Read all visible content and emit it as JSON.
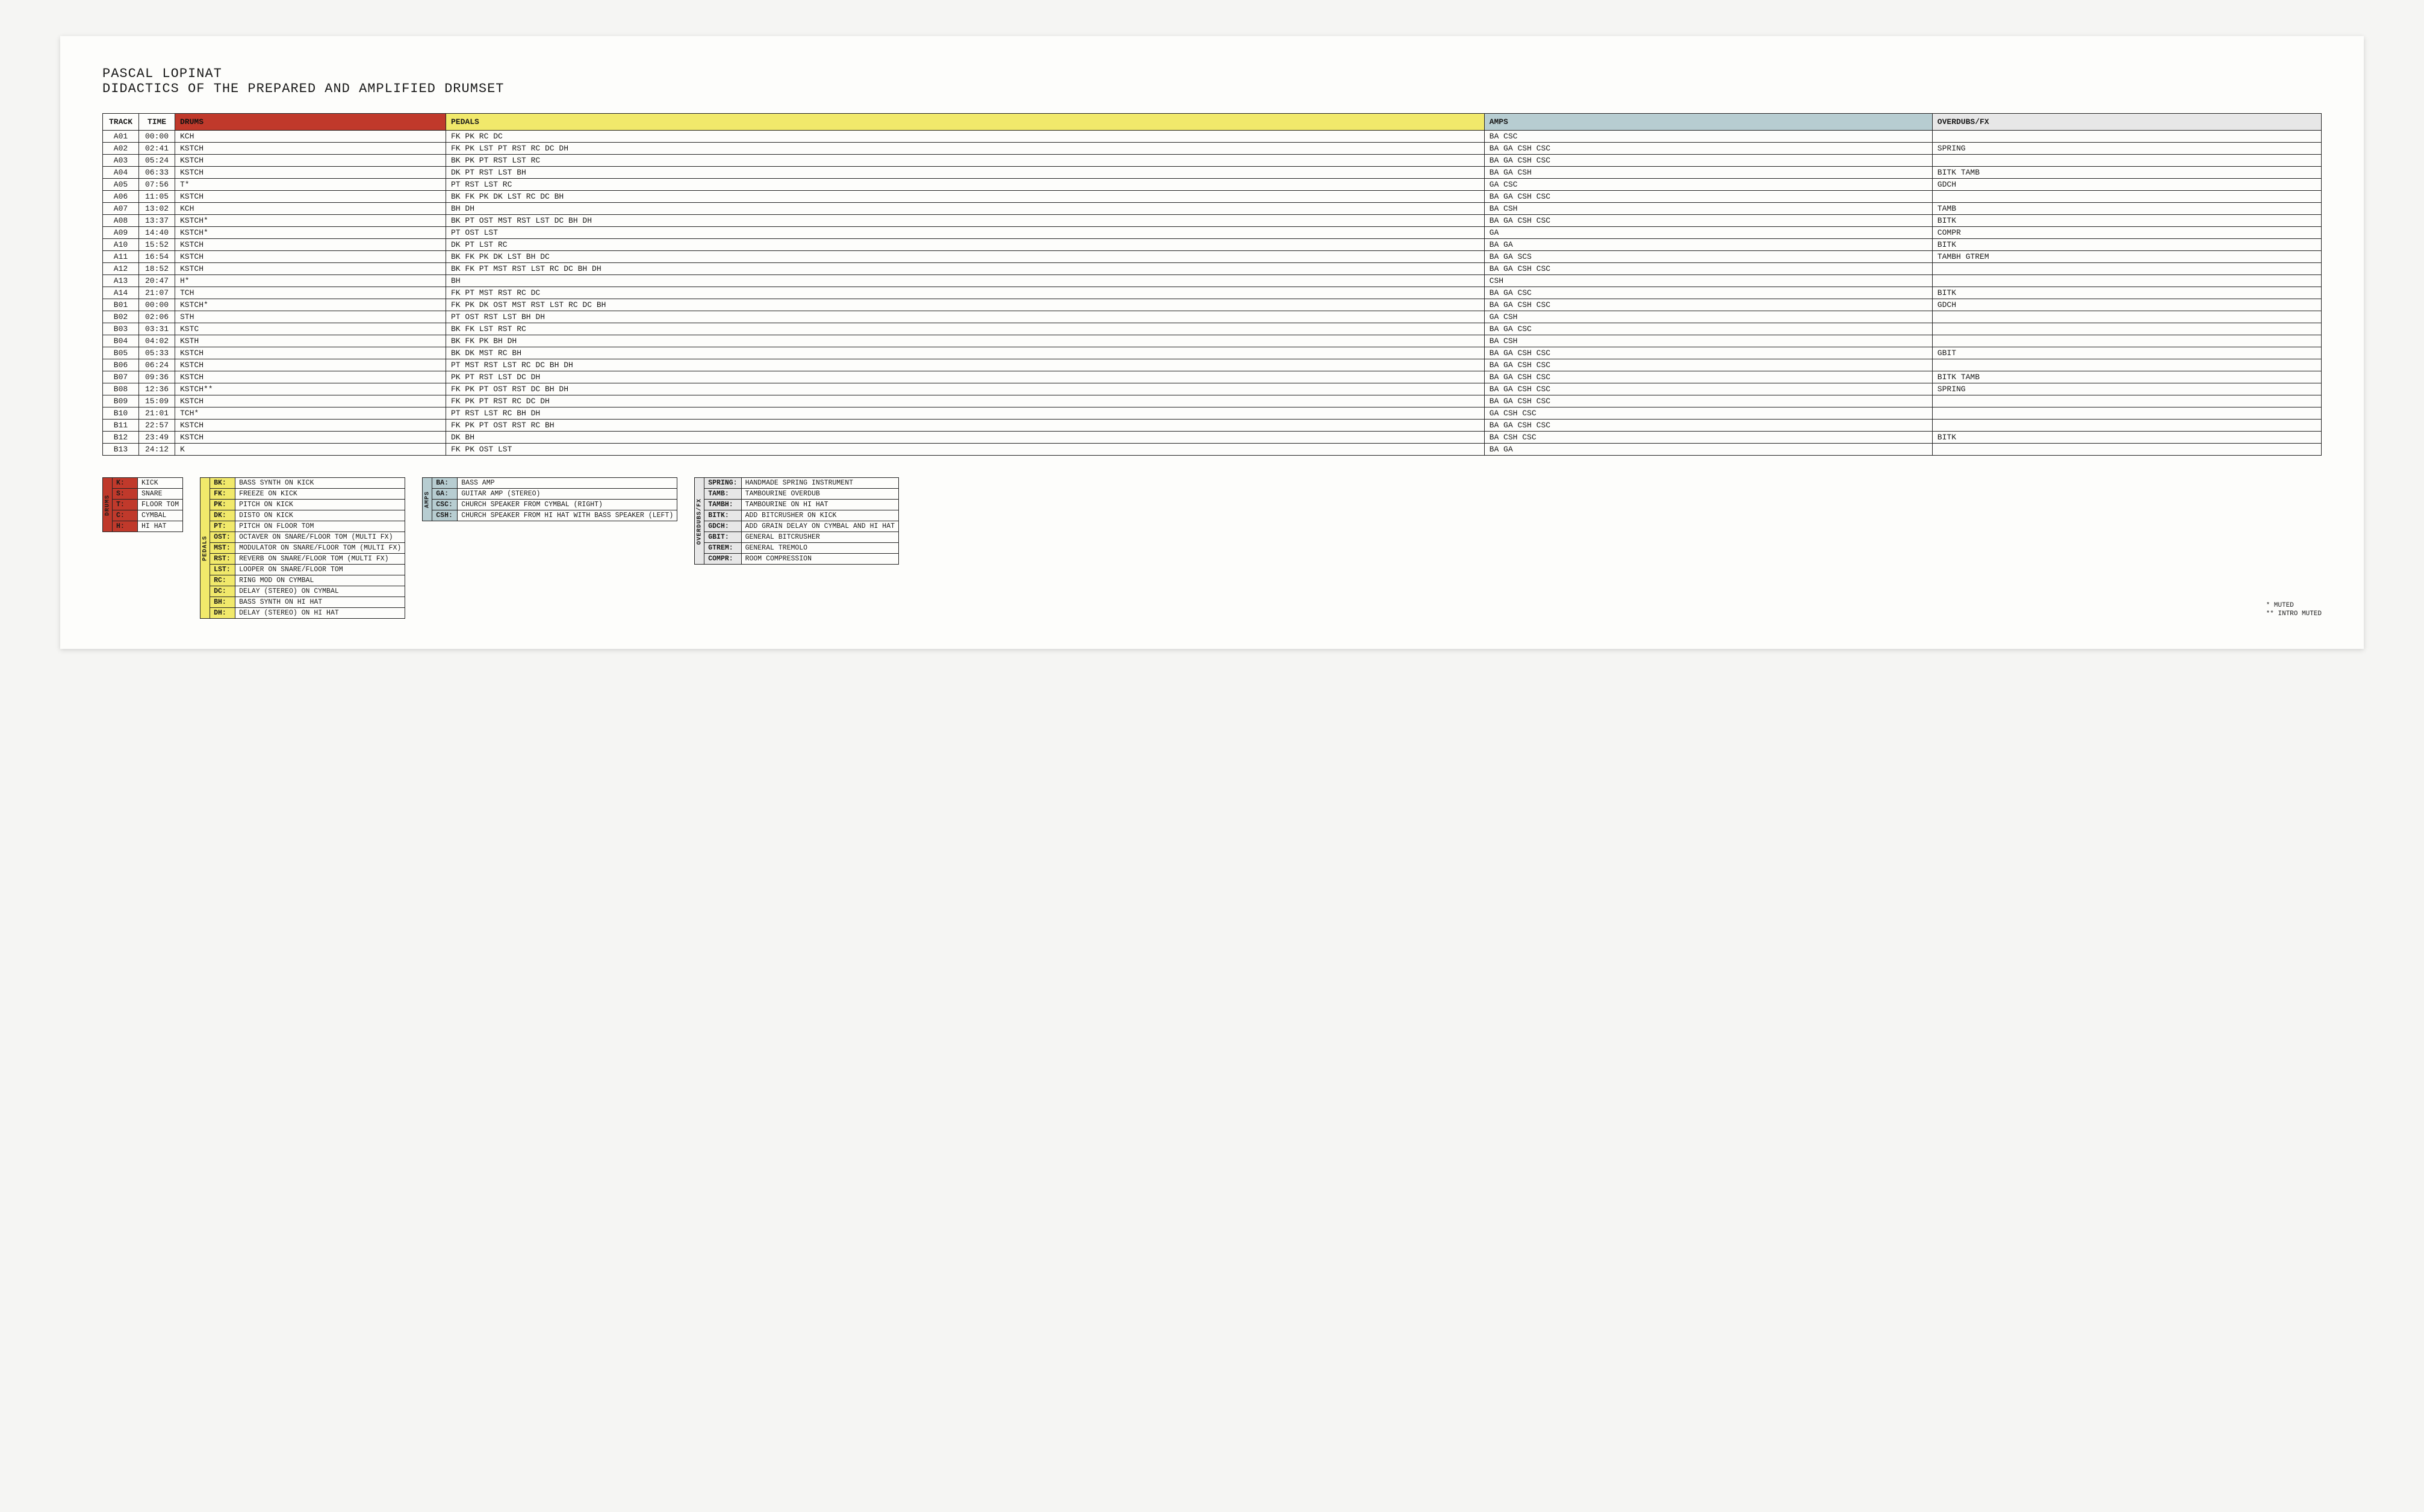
{
  "header": {
    "artist": "PASCAL LOPINAT",
    "title": "DIDACTICS OF THE PREPARED AND AMPLIFIED DRUMSET"
  },
  "colors": {
    "drums": "#c0392b",
    "pedals": "#f1e96b",
    "amps": "#b7cdd1",
    "overdubs": "#e7e7e7",
    "row_bg": "#ffffff"
  },
  "columns": {
    "track": "TRACK",
    "time": "TIME",
    "drums": "DRUMS",
    "pedals": "PEDALS",
    "amps": "AMPS",
    "overdubs": "OVERDUBS/FX"
  },
  "tracks": [
    {
      "id": "A01",
      "time": "00:00",
      "drums": "KCH",
      "pedals": "FK PK RC DC",
      "amps": "BA CSC",
      "od": ""
    },
    {
      "id": "A02",
      "time": "02:41",
      "drums": "KSTCH",
      "pedals": "FK PK LST PT RST RC DC DH",
      "amps": "BA GA CSH CSC",
      "od": "SPRING"
    },
    {
      "id": "A03",
      "time": "05:24",
      "drums": "KSTCH",
      "pedals": "BK PK PT RST LST RC",
      "amps": "BA GA CSH CSC",
      "od": ""
    },
    {
      "id": "A04",
      "time": "06:33",
      "drums": "KSTCH",
      "pedals": "DK PT RST LST BH",
      "amps": "BA GA CSH",
      "od": "BITK TAMB"
    },
    {
      "id": "A05",
      "time": "07:56",
      "drums": "T*",
      "pedals": "PT RST LST RC",
      "amps": "GA CSC",
      "od": "GDCH"
    },
    {
      "id": "A06",
      "time": "11:05",
      "drums": "KSTCH",
      "pedals": "BK FK PK DK LST RC DC BH",
      "amps": "BA GA CSH CSC",
      "od": ""
    },
    {
      "id": "A07",
      "time": "13:02",
      "drums": "KCH",
      "pedals": "BH DH",
      "amps": "BA CSH",
      "od": "TAMB"
    },
    {
      "id": "A08",
      "time": "13:37",
      "drums": "KSTCH*",
      "pedals": "BK PT OST MST RST LST DC BH DH",
      "amps": "BA GA CSH CSC",
      "od": "BITK"
    },
    {
      "id": "A09",
      "time": "14:40",
      "drums": "KSTCH*",
      "pedals": "PT OST LST",
      "amps": "GA",
      "od": "COMPR"
    },
    {
      "id": "A10",
      "time": "15:52",
      "drums": "KSTCH",
      "pedals": "DK PT LST RC",
      "amps": "BA GA",
      "od": "BITK"
    },
    {
      "id": "A11",
      "time": "16:54",
      "drums": "KSTCH",
      "pedals": "BK FK PK DK LST BH DC",
      "amps": "BA GA SCS",
      "od": "TAMBH GTREM"
    },
    {
      "id": "A12",
      "time": "18:52",
      "drums": "KSTCH",
      "pedals": "BK FK PT MST RST LST RC DC BH DH",
      "amps": "BA GA CSH CSC",
      "od": ""
    },
    {
      "id": "A13",
      "time": "20:47",
      "drums": "H*",
      "pedals": "BH",
      "amps": "CSH",
      "od": ""
    },
    {
      "id": "A14",
      "time": "21:07",
      "drums": "TCH",
      "pedals": "FK PT MST RST RC DC",
      "amps": "BA GA CSC",
      "od": "BITK"
    },
    {
      "id": "B01",
      "time": "00:00",
      "drums": "KSTCH*",
      "pedals": "FK PK DK OST MST RST LST RC DC BH",
      "amps": "BA GA CSH CSC",
      "od": "GDCH"
    },
    {
      "id": "B02",
      "time": "02:06",
      "drums": "STH",
      "pedals": "PT OST RST LST BH DH",
      "amps": "GA CSH",
      "od": ""
    },
    {
      "id": "B03",
      "time": "03:31",
      "drums": "KSTC",
      "pedals": "BK FK LST RST RC",
      "amps": "BA GA CSC",
      "od": ""
    },
    {
      "id": "B04",
      "time": "04:02",
      "drums": "KSTH",
      "pedals": "BK FK PK BH DH",
      "amps": "BA CSH",
      "od": ""
    },
    {
      "id": "B05",
      "time": "05:33",
      "drums": "KSTCH",
      "pedals": "BK DK MST RC BH",
      "amps": "BA GA CSH CSC",
      "od": "GBIT"
    },
    {
      "id": "B06",
      "time": "06:24",
      "drums": "KSTCH",
      "pedals": "PT MST RST LST RC DC BH DH",
      "amps": "BA GA CSH CSC",
      "od": ""
    },
    {
      "id": "B07",
      "time": "09:36",
      "drums": "KSTCH",
      "pedals": "PK PT RST LST DC DH",
      "amps": "BA GA CSH CSC",
      "od": "BITK TAMB"
    },
    {
      "id": "B08",
      "time": "12:36",
      "drums": "KSTCH**",
      "pedals": "FK PK PT OST RST DC BH DH",
      "amps": "BA GA CSH CSC",
      "od": "SPRING"
    },
    {
      "id": "B09",
      "time": "15:09",
      "drums": "KSTCH",
      "pedals": "FK PK PT RST RC DC DH",
      "amps": "BA GA CSH CSC",
      "od": ""
    },
    {
      "id": "B10",
      "time": "21:01",
      "drums": "TCH*",
      "pedals": "PT RST LST RC BH DH",
      "amps": "GA CSH CSC",
      "od": ""
    },
    {
      "id": "B11",
      "time": "22:57",
      "drums": "KSTCH",
      "pedals": "FK PK PT OST RST RC BH",
      "amps": "BA GA CSH CSC",
      "od": ""
    },
    {
      "id": "B12",
      "time": "23:49",
      "drums": "KSTCH",
      "pedals": "DK BH",
      "amps": "BA CSH CSC",
      "od": "BITK"
    },
    {
      "id": "B13",
      "time": "24:12",
      "drums": "K",
      "pedals": "FK PK OST LST",
      "amps": "BA GA",
      "od": ""
    }
  ],
  "legend_labels": {
    "drums": "DRUMS",
    "pedals": "PEDALS",
    "amps": "AMPS",
    "overdubs": "OVERDUBS/FX"
  },
  "legend_drums": [
    {
      "code": "K:",
      "desc": "KICK"
    },
    {
      "code": "S:",
      "desc": "SNARE"
    },
    {
      "code": "T:",
      "desc": "FLOOR TOM"
    },
    {
      "code": "C:",
      "desc": "CYMBAL"
    },
    {
      "code": "H:",
      "desc": "HI HAT"
    }
  ],
  "legend_pedals": [
    {
      "code": "BK:",
      "desc": "BASS SYNTH ON KICK"
    },
    {
      "code": "FK:",
      "desc": "FREEZE ON KICK"
    },
    {
      "code": "PK:",
      "desc": "PITCH ON KICK"
    },
    {
      "code": "DK:",
      "desc": "DISTO ON KICK"
    },
    {
      "code": "PT:",
      "desc": "PITCH ON FLOOR TOM"
    },
    {
      "code": "OST:",
      "desc": "OCTAVER ON SNARE/FLOOR TOM (MULTI FX)"
    },
    {
      "code": "MST:",
      "desc": "MODULATOR ON SNARE/FLOOR TOM (MULTI FX)"
    },
    {
      "code": "RST:",
      "desc": "REVERB ON SNARE/FLOOR TOM (MULTI FX)"
    },
    {
      "code": "LST:",
      "desc": "LOOPER ON SNARE/FLOOR TOM"
    },
    {
      "code": "RC:",
      "desc": "RING MOD ON CYMBAL"
    },
    {
      "code": "DC:",
      "desc": "DELAY (STEREO) ON CYMBAL"
    },
    {
      "code": "BH:",
      "desc": "BASS SYNTH ON HI HAT"
    },
    {
      "code": "DH:",
      "desc": "DELAY (STEREO) ON HI HAT"
    }
  ],
  "legend_amps": [
    {
      "code": "BA:",
      "desc": "BASS AMP"
    },
    {
      "code": "GA:",
      "desc": "GUITAR AMP (STEREO)"
    },
    {
      "code": "CSC:",
      "desc": "CHURCH SPEAKER FROM CYMBAL (RIGHT)"
    },
    {
      "code": "CSH:",
      "desc": "CHURCH SPEAKER FROM HI HAT WITH BASS SPEAKER (LEFT)"
    }
  ],
  "legend_overdubs": [
    {
      "code": "SPRING:",
      "desc": "HANDMADE SPRING INSTRUMENT"
    },
    {
      "code": "TAMB:",
      "desc": "TAMBOURINE OVERDUB"
    },
    {
      "code": "TAMBH:",
      "desc": "TAMBOURINE ON HI HAT"
    },
    {
      "code": "BITK:",
      "desc": "ADD BITCRUSHER ON KICK"
    },
    {
      "code": "GDCH:",
      "desc": "ADD GRAIN DELAY ON CYMBAL AND HI HAT"
    },
    {
      "code": "GBIT:",
      "desc": "GENERAL BITCRUSHER"
    },
    {
      "code": "GTREM:",
      "desc": "GENERAL TREMOLO"
    },
    {
      "code": "COMPR:",
      "desc": "ROOM COMPRESSION"
    }
  ],
  "footnotes": [
    {
      "sym": "*",
      "text": "MUTED"
    },
    {
      "sym": "**",
      "text": "INTRO MUTED"
    }
  ]
}
